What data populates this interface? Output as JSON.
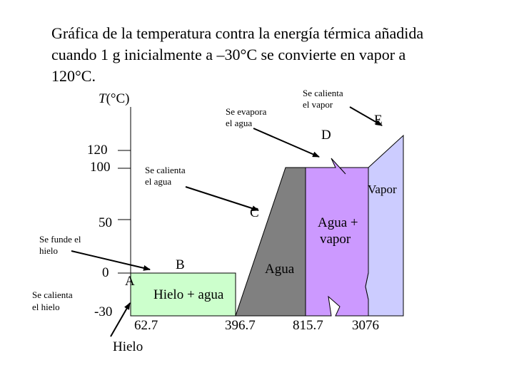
{
  "title": {
    "line1": "Gráfica de la temperatura contra la energía térmica añadida",
    "line2": "cuando 1 g inicialmente a –30°C se convierte en vapor a",
    "line3": "120°C."
  },
  "axis": {
    "y_label_var": "T",
    "y_label_unit": "(°C)",
    "y_ticks": [
      "120",
      "100",
      "50",
      "0",
      "-30"
    ],
    "x_ticks": [
      "62.7",
      "396.7",
      "815.7",
      "3076"
    ]
  },
  "regions": {
    "hielo": "Hielo",
    "hielo_agua": "Hielo + agua",
    "agua": "Agua",
    "agua_vapor_1": "Agua +",
    "agua_vapor_2": "vapor",
    "vapor": "Vapor"
  },
  "points": {
    "A": "A",
    "B": "B",
    "C": "C",
    "D": "D",
    "E": "E"
  },
  "annotations": {
    "calienta_hielo_1": "Se calienta",
    "calienta_hielo_2": "el hielo",
    "funde_hielo_1": "Se funde el",
    "funde_hielo_2": "hielo",
    "calienta_agua_1": "Se calienta",
    "calienta_agua_2": "el agua",
    "evapora_agua_1": "Se evapora",
    "evapora_agua_2": "el agua",
    "calienta_vapor_1": "Se calienta",
    "calienta_vapor_2": "el vapor"
  },
  "colors": {
    "hielo_agua": "#ccffcc",
    "agua": "#808080",
    "agua_vapor": "#cc99ff",
    "vapor": "#ccccff",
    "lines": "#000000"
  }
}
